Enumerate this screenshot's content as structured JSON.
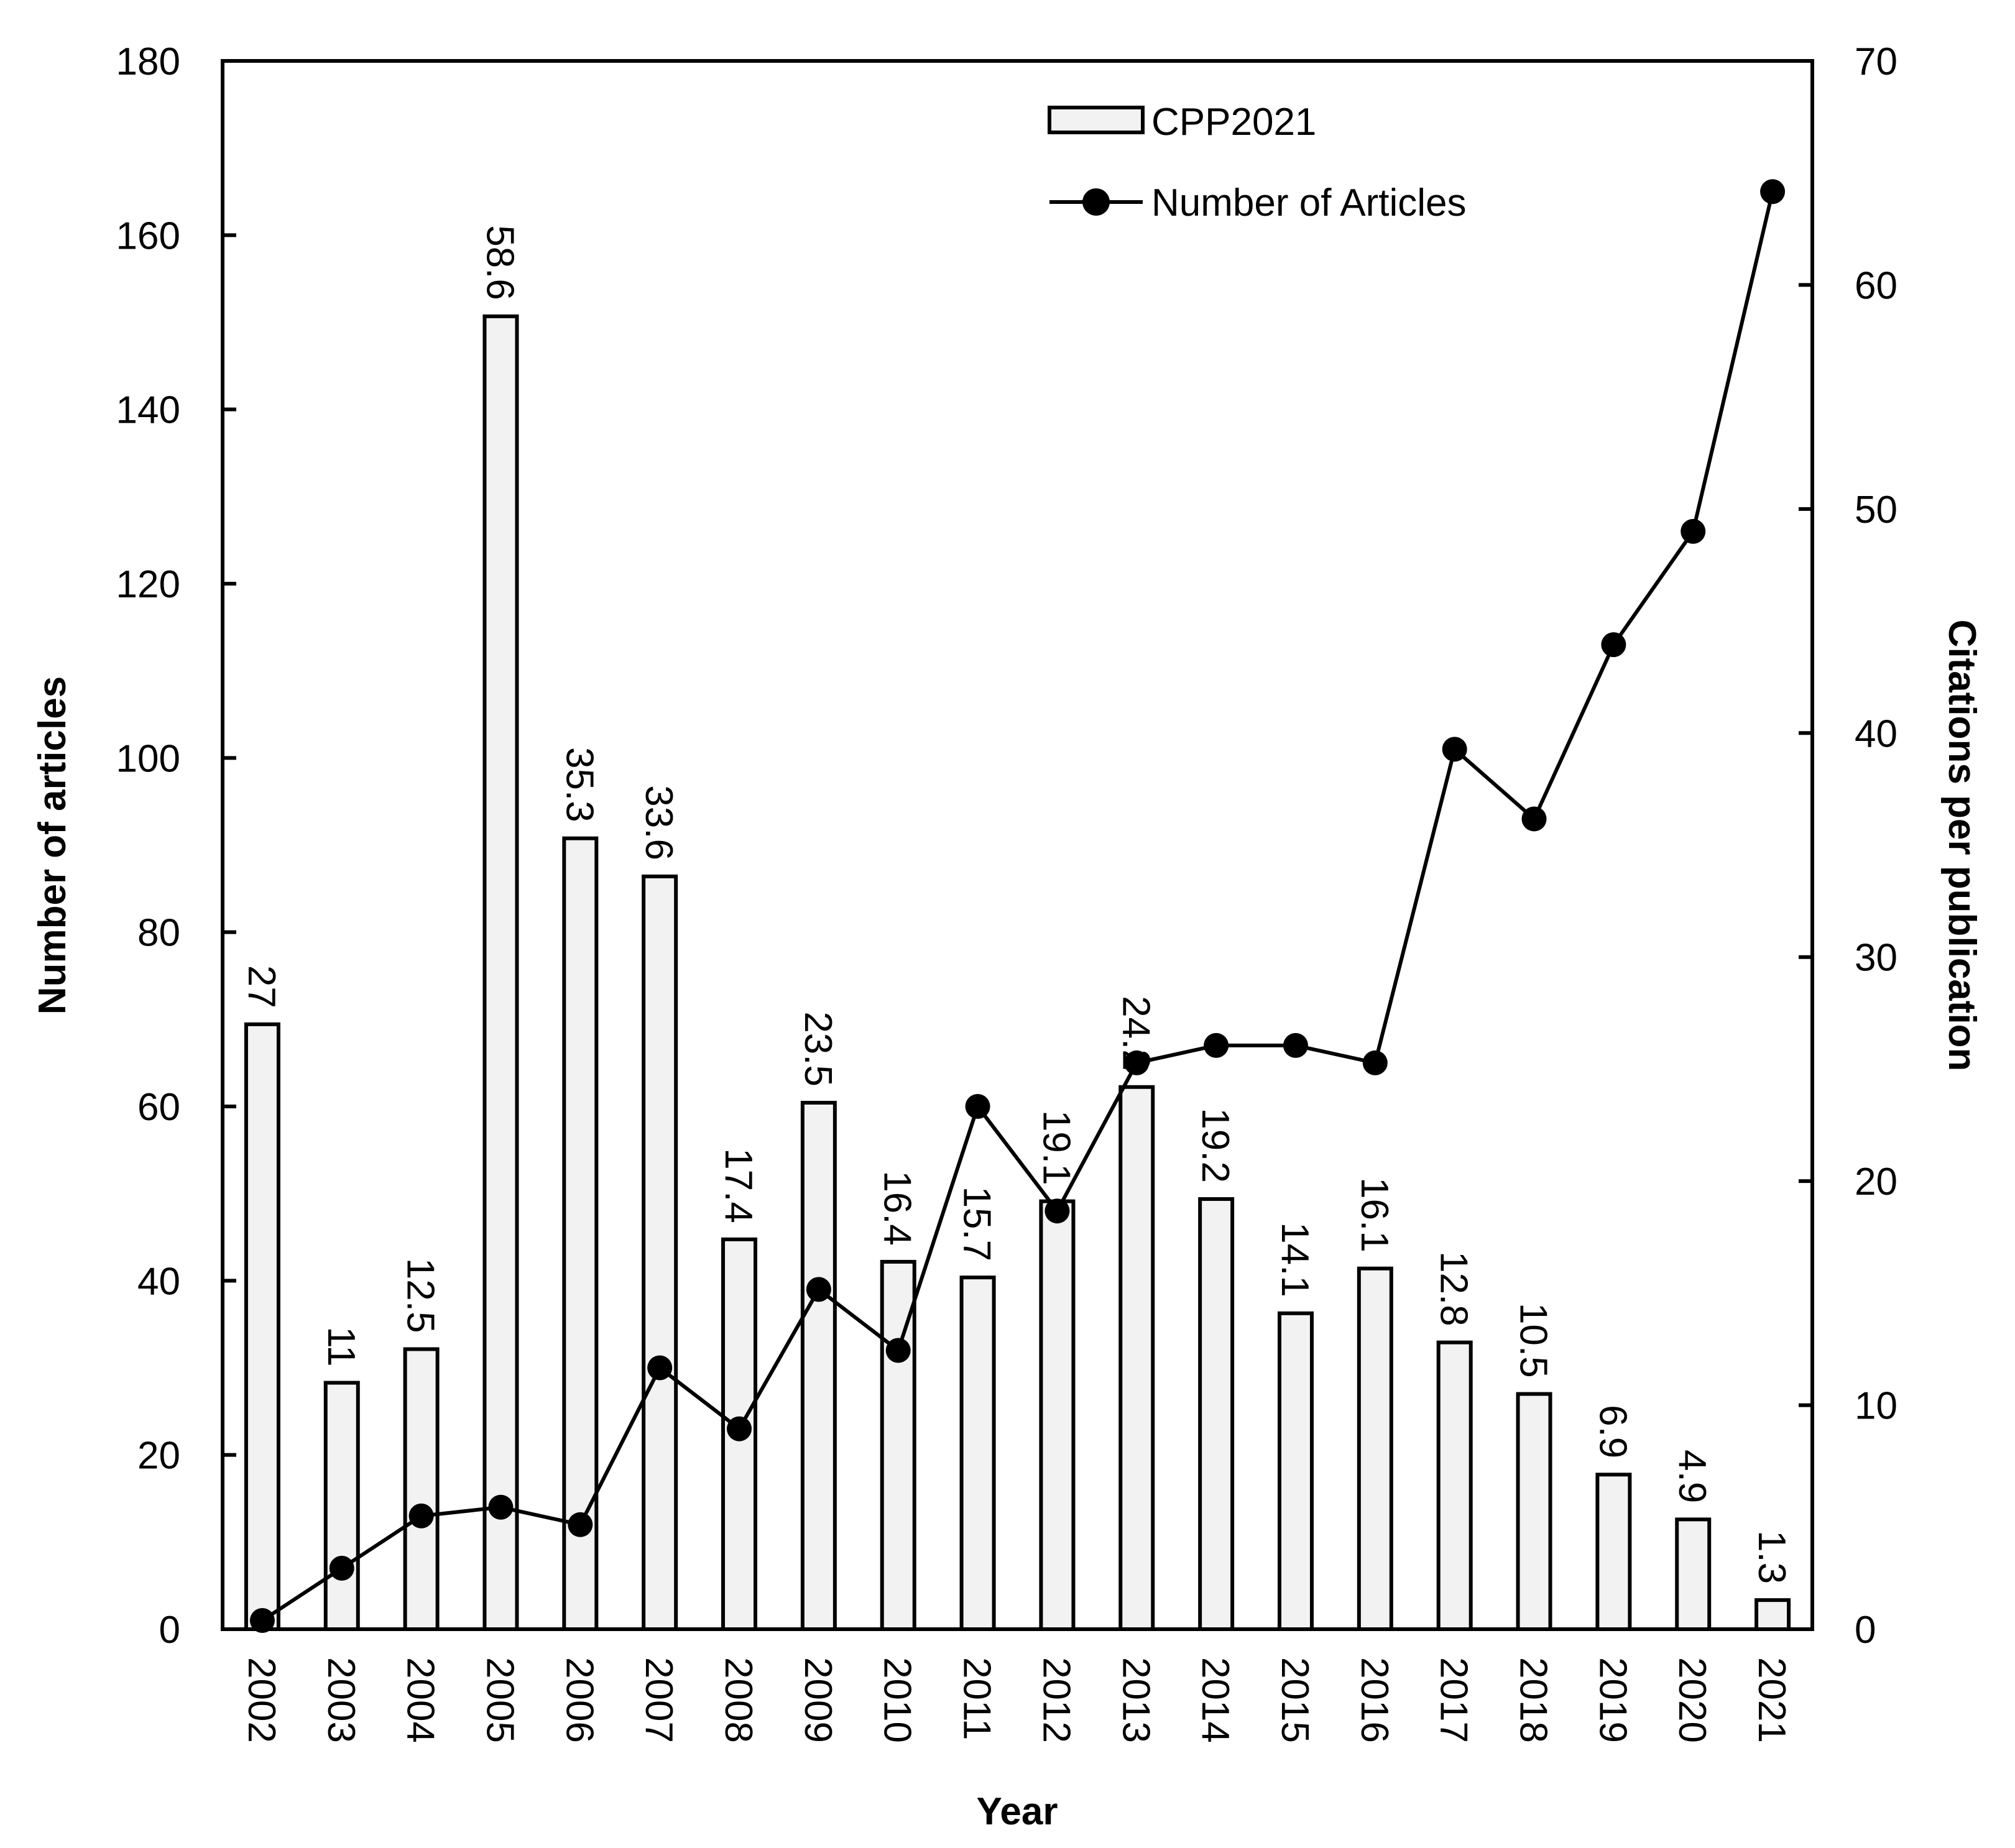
{
  "chart_data": {
    "type": "bar+line",
    "title": "",
    "xlabel": "Year",
    "ylabel_left": "Number of articles",
    "ylabel_right": "Citations per publication",
    "ylim_left": [
      0,
      180
    ],
    "ylim_right": [
      0,
      70
    ],
    "yticks_left": [
      0,
      20,
      40,
      60,
      80,
      100,
      120,
      140,
      160,
      180
    ],
    "yticks_right": [
      0,
      10,
      20,
      30,
      40,
      50,
      60,
      70
    ],
    "grid": false,
    "legend_position": "upper-right-inside",
    "categories": [
      "2002",
      "2003",
      "2004",
      "2005",
      "2006",
      "2007",
      "2008",
      "2009",
      "2010",
      "2011",
      "2012",
      "2013",
      "2014",
      "2015",
      "2016",
      "2017",
      "2018",
      "2019",
      "2020",
      "2021"
    ],
    "series": [
      {
        "name": "CPP2021",
        "type": "bar",
        "axis": "right",
        "color": "#f2f2f2",
        "edge_color": "#000000",
        "values": [
          27,
          11,
          12.5,
          58.6,
          35.3,
          33.6,
          17.4,
          23.5,
          16.4,
          15.7,
          19.1,
          24.2,
          19.2,
          14.1,
          16.1,
          12.8,
          10.5,
          6.9,
          4.9,
          1.3
        ],
        "labels": [
          "27",
          "11",
          "12.5",
          "58.6",
          "35.3",
          "33.6",
          "17.4",
          "23.5",
          "16.4",
          "15.7",
          "19.1",
          "24.2",
          "19.2",
          "14.1",
          "16.1",
          "12.8",
          "10.5",
          "6.9",
          "4.9",
          "1.3"
        ]
      },
      {
        "name": "Number of Articles",
        "type": "line",
        "axis": "left",
        "color": "#000000",
        "marker": "circle",
        "values": [
          1,
          7,
          13,
          14,
          12,
          30,
          23,
          39,
          32,
          60,
          48,
          65,
          67,
          67,
          65,
          101,
          93,
          113,
          126,
          165
        ]
      }
    ]
  },
  "legend": {
    "items": [
      {
        "label": "CPP2021",
        "kind": "bar"
      },
      {
        "label": "Number of Articles",
        "kind": "line"
      }
    ]
  }
}
